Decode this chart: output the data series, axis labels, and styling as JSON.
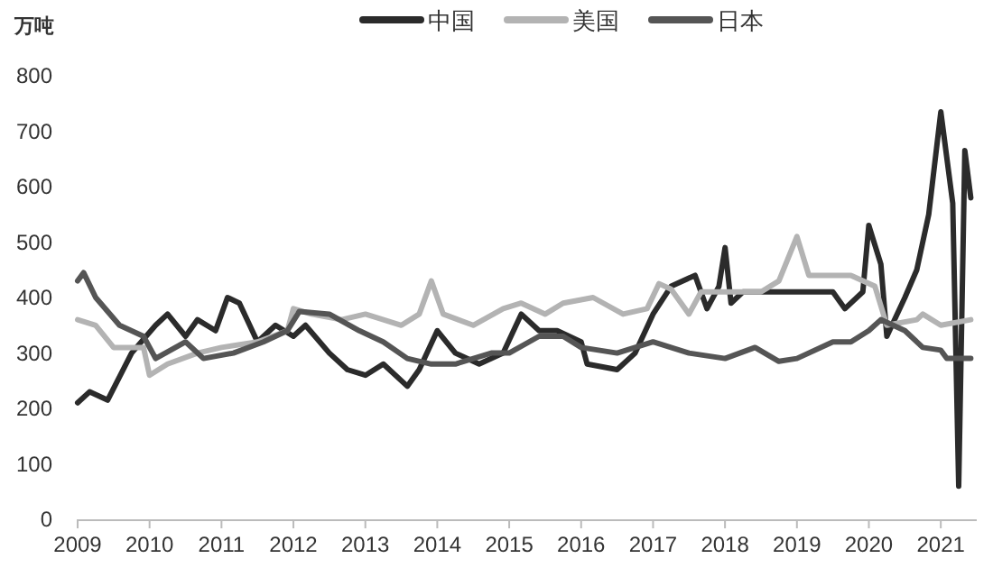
{
  "chart_data": {
    "type": "line",
    "ylabel": "万吨",
    "legend": "top",
    "grid": false,
    "line_style": "solid",
    "xlim": [
      "2009-01",
      "2021-07"
    ],
    "xticks": [
      "2009",
      "2010",
      "2011",
      "2012",
      "2013",
      "2014",
      "2015",
      "2016",
      "2017",
      "2018",
      "2019",
      "2020",
      "2021"
    ],
    "ylim": [
      0,
      800
    ],
    "yticks": [
      0,
      100,
      200,
      300,
      400,
      500,
      600,
      700,
      800
    ],
    "series": [
      {
        "name": "中国",
        "color": "#2b2b2b",
        "x": [
          "2009-01",
          "2009-03",
          "2009-06",
          "2009-10",
          "2010-02",
          "2010-04",
          "2010-07",
          "2010-09",
          "2010-12",
          "2011-02",
          "2011-04",
          "2011-07",
          "2011-10",
          "2012-01",
          "2012-03",
          "2012-07",
          "2012-10",
          "2013-01",
          "2013-04",
          "2013-08",
          "2013-10",
          "2014-01",
          "2014-04",
          "2014-08",
          "2014-12",
          "2015-03",
          "2015-06",
          "2015-09",
          "2016-01",
          "2016-02",
          "2016-07",
          "2016-10",
          "2017-01",
          "2017-04",
          "2017-08",
          "2017-10",
          "2017-12",
          "2018-01",
          "2018-02",
          "2018-04",
          "2019-01",
          "2019-07",
          "2019-09",
          "2019-12",
          "2020-01",
          "2020-03",
          "2020-04",
          "2020-07",
          "2020-09",
          "2020-11",
          "2021-01",
          "2021-03",
          "2021-04",
          "2021-05",
          "2021-06"
        ],
        "values": [
          210,
          230,
          215,
          300,
          350,
          370,
          330,
          360,
          340,
          400,
          390,
          320,
          350,
          330,
          350,
          300,
          270,
          260,
          280,
          240,
          270,
          340,
          300,
          280,
          300,
          370,
          340,
          340,
          320,
          280,
          270,
          300,
          370,
          420,
          440,
          380,
          420,
          490,
          390,
          410,
          410,
          410,
          380,
          410,
          530,
          460,
          330,
          400,
          450,
          550,
          735,
          570,
          60,
          665,
          580
        ]
      },
      {
        "name": "美国",
        "color": "#b3b3b3",
        "x": [
          "2009-01",
          "2009-04",
          "2009-07",
          "2009-12",
          "2010-01",
          "2010-04",
          "2010-09",
          "2011-01",
          "2011-07",
          "2011-12",
          "2012-01",
          "2012-04",
          "2012-09",
          "2013-01",
          "2013-07",
          "2013-10",
          "2013-12",
          "2014-02",
          "2014-07",
          "2014-12",
          "2015-03",
          "2015-07",
          "2015-10",
          "2016-03",
          "2016-08",
          "2016-12",
          "2017-02",
          "2017-04",
          "2017-07",
          "2017-09",
          "2018-07",
          "2018-10",
          "2019-01",
          "2019-03",
          "2019-10",
          "2020-02",
          "2020-04",
          "2020-09",
          "2020-10",
          "2021-01",
          "2021-06"
        ],
        "values": [
          360,
          350,
          310,
          310,
          260,
          280,
          300,
          310,
          320,
          340,
          380,
          370,
          360,
          370,
          350,
          370,
          430,
          370,
          350,
          380,
          390,
          370,
          390,
          400,
          370,
          380,
          425,
          415,
          370,
          410,
          410,
          430,
          510,
          440,
          440,
          420,
          350,
          360,
          370,
          350,
          360
        ]
      },
      {
        "name": "日本",
        "color": "#555555",
        "x": [
          "2009-01",
          "2009-02",
          "2009-04",
          "2009-08",
          "2009-12",
          "2010-02",
          "2010-07",
          "2010-10",
          "2011-03",
          "2011-08",
          "2011-12",
          "2012-02",
          "2012-07",
          "2012-12",
          "2013-04",
          "2013-08",
          "2013-12",
          "2014-04",
          "2014-10",
          "2015-01",
          "2015-06",
          "2015-10",
          "2016-01",
          "2016-07",
          "2017-01",
          "2017-07",
          "2018-01",
          "2018-06",
          "2018-10",
          "2019-01",
          "2019-07",
          "2019-10",
          "2020-01",
          "2020-03",
          "2020-07",
          "2020-10",
          "2021-01",
          "2021-02",
          "2021-06"
        ],
        "values": [
          430,
          445,
          400,
          350,
          330,
          290,
          320,
          290,
          300,
          320,
          340,
          375,
          370,
          340,
          320,
          290,
          280,
          280,
          300,
          300,
          330,
          330,
          310,
          300,
          320,
          300,
          290,
          310,
          285,
          290,
          320,
          320,
          340,
          360,
          340,
          310,
          305,
          290,
          290
        ]
      }
    ]
  }
}
